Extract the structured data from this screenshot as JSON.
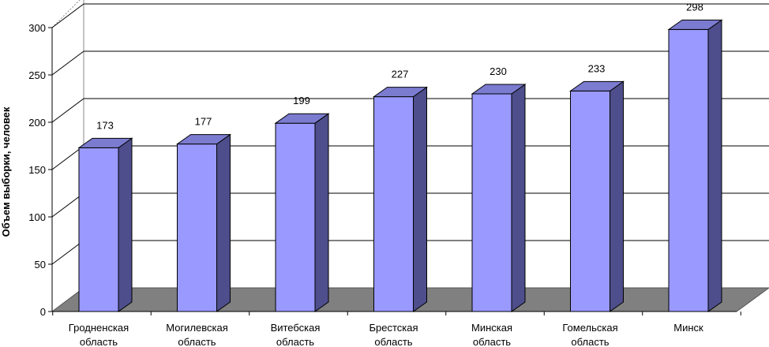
{
  "chart_data": {
    "type": "bar",
    "style": "3d-column",
    "categories": [
      [
        "Гродненская",
        "область"
      ],
      [
        "Могилевская",
        "область"
      ],
      [
        "Витебская",
        "область"
      ],
      [
        "Брестская",
        "область"
      ],
      [
        "Минская",
        "область"
      ],
      [
        "Гомельская",
        "область"
      ],
      [
        "Минск"
      ]
    ],
    "values": [
      173,
      177,
      199,
      227,
      230,
      233,
      298
    ],
    "data_labels": [
      "173",
      "177",
      "199",
      "227",
      "230",
      "233",
      "298"
    ],
    "ylabel": "Объем выборки, человек",
    "ylim": [
      0,
      300
    ],
    "yticks": [
      0,
      50,
      100,
      150,
      200,
      250,
      300
    ],
    "ytick_labels": [
      "0",
      "50",
      "100",
      "150",
      "200",
      "250",
      "300"
    ],
    "grid": true,
    "legend": "none",
    "colors": {
      "bar_front": "#9999ff",
      "bar_side": "#4e4e8c",
      "bar_top": "#7b7bd0",
      "floor": "#808080",
      "grid": "#000000"
    }
  }
}
